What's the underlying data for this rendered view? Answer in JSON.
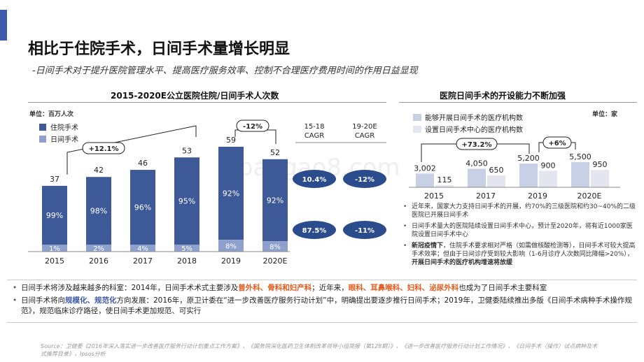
{
  "header": {
    "title": "相比于住院手术，日间手术量增长明显",
    "subtitle": "-日间手术对于提升医院管理水平、提高医疗服务效率、控制不合理医疗费用时间的作用日益显现"
  },
  "colors": {
    "accent": "#3b5aa8",
    "inpatient": "#3d5998",
    "daytime": "#8da1cc",
    "orange": "#e55a1b"
  },
  "chart_data": [
    {
      "type": "bar",
      "title": "2015-2020E公立医院住院/日间手术人次数",
      "unit_label": "单位：百万人次",
      "categories": [
        "2015",
        "2016",
        "2017",
        "2018",
        "2019",
        "2020E"
      ],
      "totals": [
        37,
        42,
        46,
        53,
        59,
        52
      ],
      "series": [
        {
          "name": "住院手术",
          "values": [
            "99%",
            "98%",
            "96%",
            "95%",
            "92%",
            "92%"
          ],
          "shares": [
            0.99,
            0.98,
            0.96,
            0.95,
            0.92,
            0.92
          ]
        },
        {
          "name": "日间手术",
          "values": [
            "1%",
            "2%",
            "4%",
            "5%",
            "8%",
            "8%"
          ],
          "shares": [
            0.01,
            0.02,
            0.04,
            0.05,
            0.08,
            0.08
          ]
        }
      ],
      "annotations": {
        "growth_total": "+12.1%",
        "growth_2019_2020": "-12%"
      },
      "cagr": {
        "headers": [
          "15-18\nCAGR",
          "19-20E\nCAGR"
        ],
        "header_a": [
          "15-18",
          "CAGR"
        ],
        "header_b": [
          "19-20E",
          "CAGR"
        ],
        "rows": [
          [
            "10.4%",
            "-12%"
          ],
          [
            "87.5%",
            "-11%"
          ]
        ]
      }
    },
    {
      "type": "bar",
      "title": "医院日间手术的开设能力不断加强",
      "unit_label": "单位：家",
      "categories": [
        "2015",
        "2017",
        "2019",
        "2020E"
      ],
      "series": [
        {
          "name": "能够开展日间手术的医疗机构数",
          "values": [
            3002,
            4050,
            5200,
            5500
          ]
        },
        {
          "name": "设置日间手术中心的医疗机构数",
          "values": [
            115,
            650,
            900,
            950
          ]
        }
      ],
      "value_labels_a": [
        "3,002",
        "4,050",
        "5,200",
        "5,500"
      ],
      "value_labels_b": [
        "115",
        "650",
        "900",
        "950"
      ],
      "annotations": {
        "growth_a": "+73.2%",
        "growth_b": "+6%"
      }
    }
  ],
  "right_bullets": [
    {
      "text": "近年来，国家大力支持日间手术的开展，约70%的三级医院和约30~40%的二级医院已开展日间手术"
    },
    {
      "text": "日间手术量大的医院陆续设置日间手术中心，预计至2020年，将有近1000家医院设置日间手术中心"
    },
    {
      "bold_lead": "新冠疫情下",
      "text": "，住院手术要求相对严格（如需做核酸检测等），日间手术可较大提高手术效率；但由于日间诊疗受到较大影响（1-6月诊疗人次数同比降幅>20%），",
      "bold_tail": "开展日间手术的医疗机构增速将放缓"
    }
  ],
  "bottom_bullets": [
    {
      "p1": "日间手术将涉及越来越多的科室：2014年，日间手术术式主要涉及",
      "h1": "普外科、骨科和妇产科",
      "p2": "；近年来，",
      "h2": "眼科、耳鼻喉科、妇科、泌尿外科",
      "p3": "也成为了日间手术主要科室"
    },
    {
      "p1": "日间手术将向",
      "h1": "规模化、规范化",
      "p2": "方向发展：2016年，原卫计委在“进一步改善医疗服务行动计划”中，明确提出要逐步推行日间手术；2019年，卫健委陆续推出多版《日间手术病种手术操作规范》，规范临床诊疗路径，使日间手术更加规范、可实行"
    }
  ],
  "source": "Source：卫健委《2016年深入落实进一步改善医疗服务行动计划重点工作方案》，《国务院深化医药卫生体制改革领导小组简报（第128期）》，《进一步改善医疗服务行动计划工作情况》，《日间手术（操作）试点病种及术式推荐目录》，Ipsos分析",
  "watermark": "baogao8.com"
}
